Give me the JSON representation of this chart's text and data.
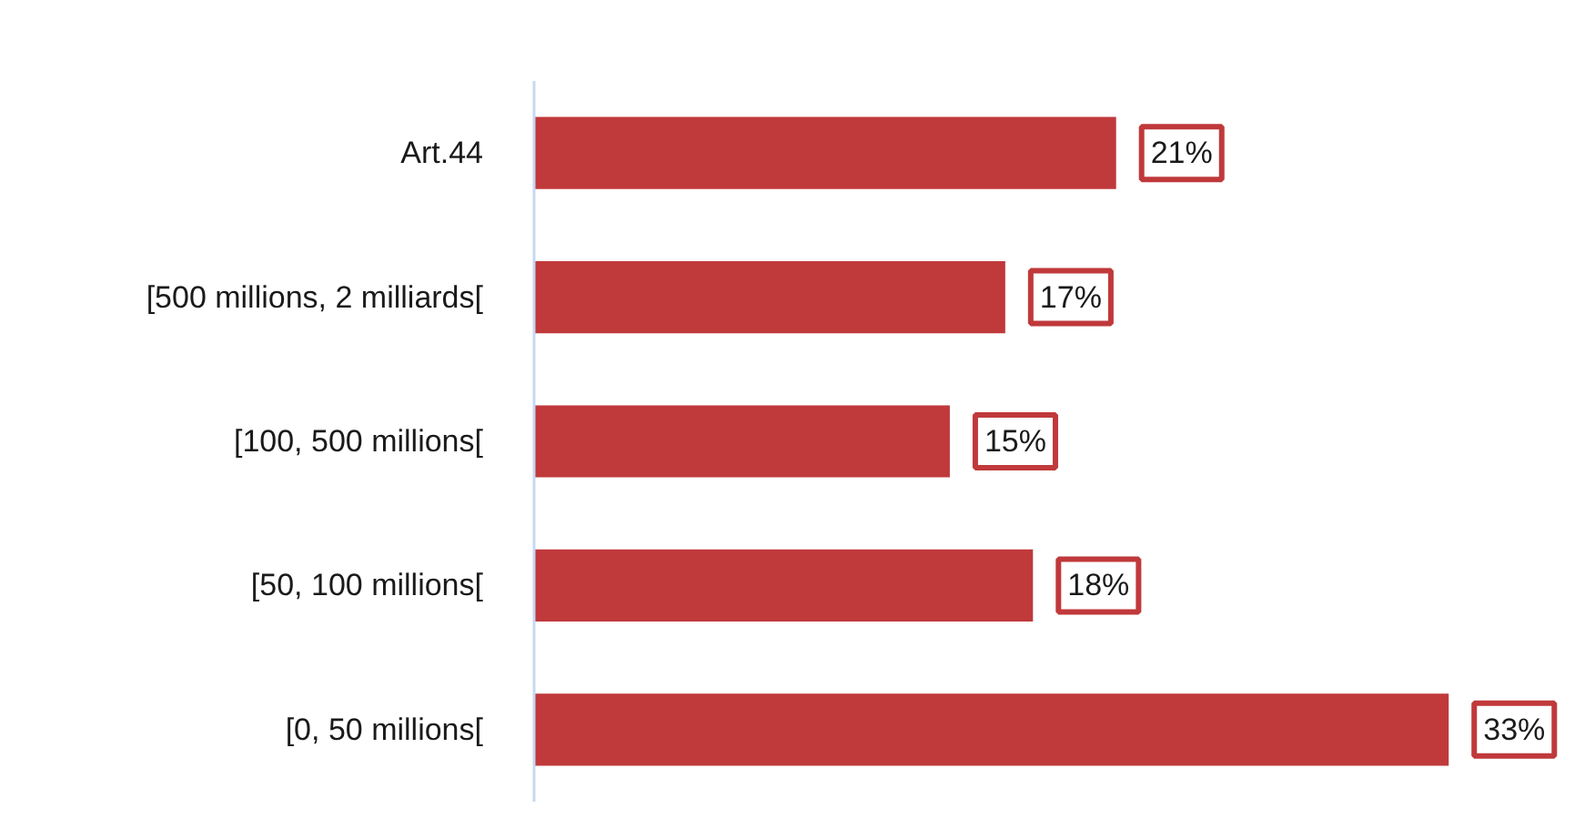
{
  "chart_data": {
    "type": "bar",
    "orientation": "horizontal",
    "categories": [
      "Art.44",
      "[500 millions, 2 milliards[",
      "[100, 500 millions[",
      "[50, 100 millions[",
      "[0, 50 millions["
    ],
    "values": [
      21,
      17,
      15,
      18,
      33
    ],
    "color": "#c0393b",
    "value_labels": [
      "21%",
      "17%",
      "15%",
      "18%",
      "33%"
    ],
    "grid": false
  }
}
